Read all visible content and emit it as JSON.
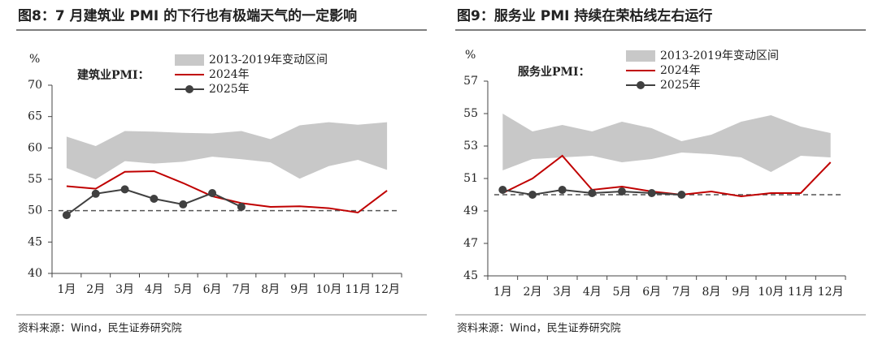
{
  "chart_data": [
    {
      "type": "line",
      "title": "图8：7 月建筑业 PMI 的下行也有极端天气的一定影响",
      "y_label": "%",
      "legend_title": "建筑业PMI：",
      "categories": [
        "1月",
        "2月",
        "3月",
        "4月",
        "5月",
        "6月",
        "7月",
        "8月",
        "9月",
        "10月",
        "11月",
        "12月"
      ],
      "ylim": [
        40,
        70
      ],
      "yticks": [
        40,
        45,
        50,
        55,
        60,
        65,
        70
      ],
      "reference_line": 50,
      "series": [
        {
          "name": "2013-2019年变动区间",
          "color": "#c8c8c8",
          "kind": "band",
          "values": [
            61.8,
            60.3,
            62.7,
            62.6,
            62.4,
            62.3,
            62.7,
            61.4,
            63.6,
            64.1,
            63.7,
            64.1
          ],
          "lower": [
            56.8,
            55.0,
            57.9,
            57.5,
            57.8,
            58.6,
            58.2,
            57.7,
            55.1,
            57.1,
            58.1,
            56.5
          ]
        },
        {
          "name": "2024年",
          "color": "#c00000",
          "values": [
            53.9,
            53.5,
            56.2,
            56.3,
            54.4,
            52.3,
            51.2,
            50.6,
            50.7,
            50.4,
            49.7,
            53.2
          ]
        },
        {
          "name": "2025年",
          "color": "#404040",
          "markers": true,
          "values": [
            49.3,
            52.7,
            53.4,
            51.9,
            51.0,
            52.8,
            50.6,
            null,
            null,
            null,
            null,
            null
          ]
        }
      ],
      "source": "资料来源：Wind，民生证券研究院"
    },
    {
      "type": "line",
      "title": "图9：服务业 PMI 持续在荣枯线左右运行",
      "y_label": "%",
      "legend_title": "服务业PMI：",
      "categories": [
        "1月",
        "2月",
        "3月",
        "4月",
        "5月",
        "6月",
        "7月",
        "8月",
        "9月",
        "10月",
        "11月",
        "12月"
      ],
      "ylim": [
        45,
        57
      ],
      "yticks": [
        45,
        47,
        49,
        51,
        53,
        55,
        57
      ],
      "reference_line": 50,
      "series": [
        {
          "name": "2013-2019年变动区间",
          "color": "#c8c8c8",
          "kind": "band",
          "values": [
            55.0,
            53.9,
            54.3,
            53.9,
            54.5,
            54.1,
            53.3,
            53.7,
            54.5,
            54.9,
            54.2,
            53.8
          ],
          "lower": [
            51.5,
            52.2,
            52.3,
            52.4,
            52.0,
            52.2,
            52.6,
            52.5,
            52.3,
            51.4,
            52.4,
            52.3
          ]
        },
        {
          "name": "2024年",
          "color": "#c00000",
          "values": [
            50.1,
            51.0,
            52.4,
            50.3,
            50.5,
            50.2,
            50.0,
            50.2,
            49.9,
            50.1,
            50.1,
            52.0
          ]
        },
        {
          "name": "2025年",
          "color": "#404040",
          "markers": true,
          "values": [
            50.3,
            50.0,
            50.3,
            50.1,
            50.2,
            50.1,
            50.0,
            null,
            null,
            null,
            null,
            null
          ]
        }
      ],
      "source": "资料来源：Wind，民生证券研究院"
    }
  ]
}
